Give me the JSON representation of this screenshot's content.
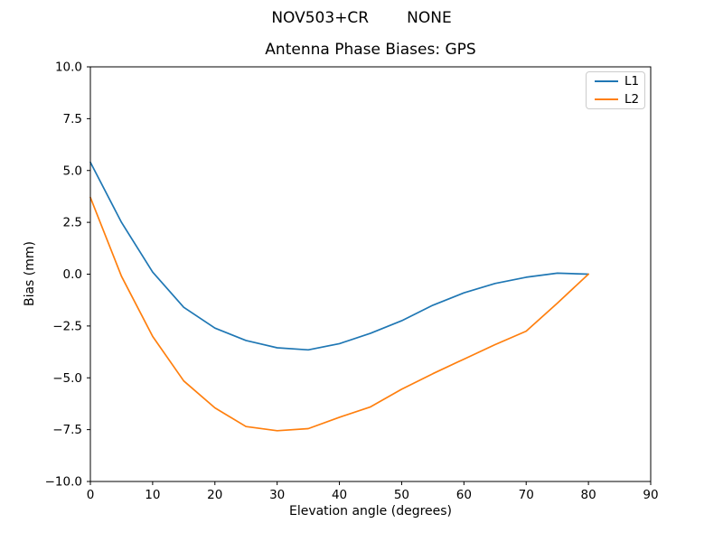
{
  "figure": {
    "suptitle_left": "NOV503+CR",
    "suptitle_right": "NONE"
  },
  "chart_data": {
    "type": "line",
    "title": "Antenna Phase Biases: GPS",
    "xlabel": "Elevation angle (degrees)",
    "ylabel": "Bias (mm)",
    "xlim": [
      0,
      90
    ],
    "ylim": [
      -10,
      10
    ],
    "grid": false,
    "legend_position": "upper right",
    "x": [
      0,
      5,
      10,
      15,
      20,
      25,
      30,
      35,
      40,
      45,
      50,
      55,
      60,
      65,
      70,
      75,
      80
    ],
    "series": [
      {
        "name": "L1",
        "color": "#1f77b4",
        "values": [
          5.4,
          2.5,
          0.1,
          -1.6,
          -2.6,
          -3.2,
          -3.55,
          -3.65,
          -3.35,
          -2.85,
          -2.25,
          -1.5,
          -0.9,
          -0.45,
          -0.15,
          0.05,
          0.0
        ]
      },
      {
        "name": "L2",
        "color": "#ff7f0e",
        "values": [
          3.7,
          -0.1,
          -3.0,
          -5.15,
          -6.45,
          -7.35,
          -7.55,
          -7.45,
          -6.9,
          -6.4,
          -5.55,
          -4.8,
          -4.1,
          -3.4,
          -2.75,
          -1.4,
          0.0
        ]
      }
    ],
    "xticks": [
      0,
      10,
      20,
      30,
      40,
      50,
      60,
      70,
      80,
      90
    ],
    "xtick_labels": [
      "0",
      "10",
      "20",
      "30",
      "40",
      "50",
      "60",
      "70",
      "80",
      "90"
    ],
    "yticks": [
      -10,
      -7.5,
      -5,
      -2.5,
      0,
      2.5,
      5,
      7.5,
      10
    ],
    "ytick_labels": [
      "−10.0",
      "−7.5",
      "−5.0",
      "−2.5",
      "0.0",
      "2.5",
      "5.0",
      "7.5",
      "10.0"
    ]
  }
}
